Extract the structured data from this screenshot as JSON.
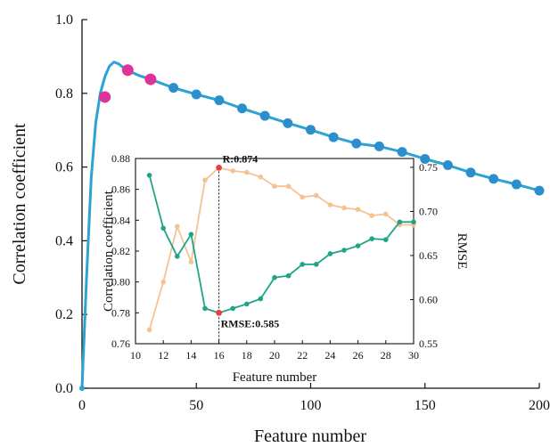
{
  "chart_data": [
    {
      "type": "line",
      "title": "",
      "xlabel": "Feature number",
      "ylabel": "Correlation coefficient",
      "xlim": [
        0,
        200
      ],
      "ylim": [
        0,
        1.0
      ],
      "xticks": [
        "0",
        "50",
        "100",
        "150",
        "200"
      ],
      "yticks": [
        "0.0",
        "0.2",
        "0.4",
        "0.6",
        "0.8",
        "1.0"
      ],
      "grid": false,
      "line_color": "#2ba3d3",
      "curve": {
        "x": [
          0,
          2,
          4,
          6,
          8,
          10,
          12,
          14,
          16,
          18,
          20,
          25,
          30,
          40,
          50,
          60,
          70,
          80,
          90,
          100,
          110,
          120,
          130,
          140,
          150,
          160,
          170,
          180,
          190,
          200
        ],
        "y": [
          0.0,
          0.3,
          0.57,
          0.72,
          0.8,
          0.845,
          0.874,
          0.885,
          0.88,
          0.87,
          0.862,
          0.848,
          0.838,
          0.815,
          0.797,
          0.781,
          0.759,
          0.739,
          0.719,
          0.701,
          0.681,
          0.664,
          0.656,
          0.641,
          0.622,
          0.605,
          0.585,
          0.568,
          0.553,
          0.536
        ]
      },
      "series": [
        {
          "color": "#2b8fcd",
          "x": [
            40,
            50,
            60,
            70,
            80,
            90,
            100,
            110,
            120,
            130,
            140,
            150,
            160,
            170,
            180,
            190,
            200
          ],
          "y": [
            0.815,
            0.797,
            0.781,
            0.759,
            0.739,
            0.719,
            0.701,
            0.681,
            0.664,
            0.656,
            0.641,
            0.622,
            0.605,
            0.585,
            0.568,
            0.553,
            0.536
          ]
        },
        {
          "color": "#e0339a",
          "x": [
            10,
            20,
            30
          ],
          "y": [
            0.79,
            0.863,
            0.838
          ]
        }
      ]
    },
    {
      "type": "line",
      "title": "",
      "xlabel": "Feature number",
      "ylabel": "Correlation coefficient",
      "y2label": "RMSE",
      "xlim": [
        10,
        30
      ],
      "ylim": [
        0.76,
        0.88
      ],
      "y2lim": [
        0.55,
        0.76
      ],
      "xticks": [
        "10",
        "12",
        "14",
        "16",
        "18",
        "20",
        "22",
        "24",
        "26",
        "28",
        "30"
      ],
      "yticks": [
        "0.76",
        "0.78",
        "0.80",
        "0.82",
        "0.84",
        "0.86",
        "0.88"
      ],
      "y2ticks": [
        "0.55",
        "0.60",
        "0.65",
        "0.70",
        "0.75"
      ],
      "grid": false,
      "series": [
        {
          "axis": "left",
          "color": "#f5c292",
          "x": [
            11,
            12,
            13,
            14,
            15,
            16,
            17,
            18,
            19,
            20,
            21,
            22,
            23,
            24,
            25,
            26,
            27,
            28,
            29,
            30
          ],
          "y": [
            0.769,
            0.8,
            0.836,
            0.813,
            0.866,
            0.874,
            0.872,
            0.871,
            0.868,
            0.862,
            0.862,
            0.855,
            0.856,
            0.85,
            0.848,
            0.847,
            0.843,
            0.844,
            0.837,
            0.837
          ]
        },
        {
          "axis": "right",
          "color": "#1fa586",
          "x": [
            11,
            12,
            13,
            14,
            15,
            16,
            17,
            18,
            19,
            20,
            21,
            22,
            23,
            24,
            25,
            26,
            27,
            28,
            29,
            30
          ],
          "y": [
            0.741,
            0.681,
            0.649,
            0.674,
            0.59,
            0.585,
            0.59,
            0.595,
            0.601,
            0.625,
            0.627,
            0.64,
            0.64,
            0.652,
            0.656,
            0.661,
            0.669,
            0.668,
            0.688,
            0.688
          ]
        }
      ],
      "highlight_color": "#e8403c",
      "annotations": [
        {
          "text": "R:0.874",
          "x": 16,
          "y": 0.874
        },
        {
          "text": "RMSE:0.585",
          "x": 16,
          "y": 0.585
        }
      ]
    }
  ]
}
